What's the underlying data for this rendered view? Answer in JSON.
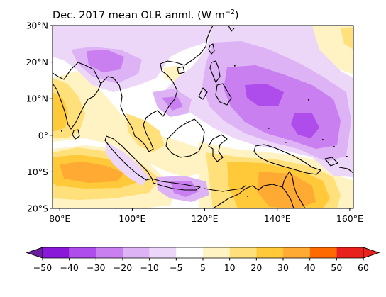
{
  "title_main": "Dec. 2017 mean OLR anml. (W m",
  "title_sup": "−2",
  "title_close": ")",
  "y_ticks": [
    {
      "lat": 30,
      "label": "30°N"
    },
    {
      "lat": 20,
      "label": "20°N"
    },
    {
      "lat": 10,
      "label": "10°N"
    },
    {
      "lat": 0,
      "label": "0°"
    },
    {
      "lat": -10,
      "label": "10°S"
    },
    {
      "lat": -20,
      "label": "20°S"
    }
  ],
  "x_ticks": [
    {
      "lon": 80,
      "label": "80°E"
    },
    {
      "lon": 100,
      "label": "100°E"
    },
    {
      "lon": 120,
      "label": "120°E"
    },
    {
      "lon": 140,
      "label": "140°E"
    },
    {
      "lon": 160,
      "label": "160°E"
    }
  ],
  "extent": {
    "lon_min": 78,
    "lon_max": 161,
    "lat_min": -20,
    "lat_max": 30
  },
  "colorbar": {
    "labels": [
      "−50",
      "−40",
      "−30",
      "−20",
      "−10",
      "−5",
      "5",
      "10",
      "20",
      "30",
      "40",
      "50",
      "60"
    ],
    "extend_low_color": "#6a1fa0",
    "extend_high_color": "#e8211c",
    "colors": [
      "#8a18d9",
      "#ae4cec",
      "#c97ff0",
      "#ddb3f5",
      "#ecd7f9",
      "#ffffff",
      "#fff3c4",
      "#ffe07a",
      "#ffc93a",
      "#ffaa33",
      "#ff6a00",
      "#e8211c"
    ]
  },
  "map_colors": {
    "neg1": "#ecd7f9",
    "neg2": "#ddb3f5",
    "neg3": "#c97ff0",
    "neg4": "#ae4cec",
    "pos1": "#fff3c4",
    "pos2": "#ffe07a",
    "pos3": "#ffc93a",
    "pos4": "#ffaa33",
    "coast": "#000000"
  }
}
